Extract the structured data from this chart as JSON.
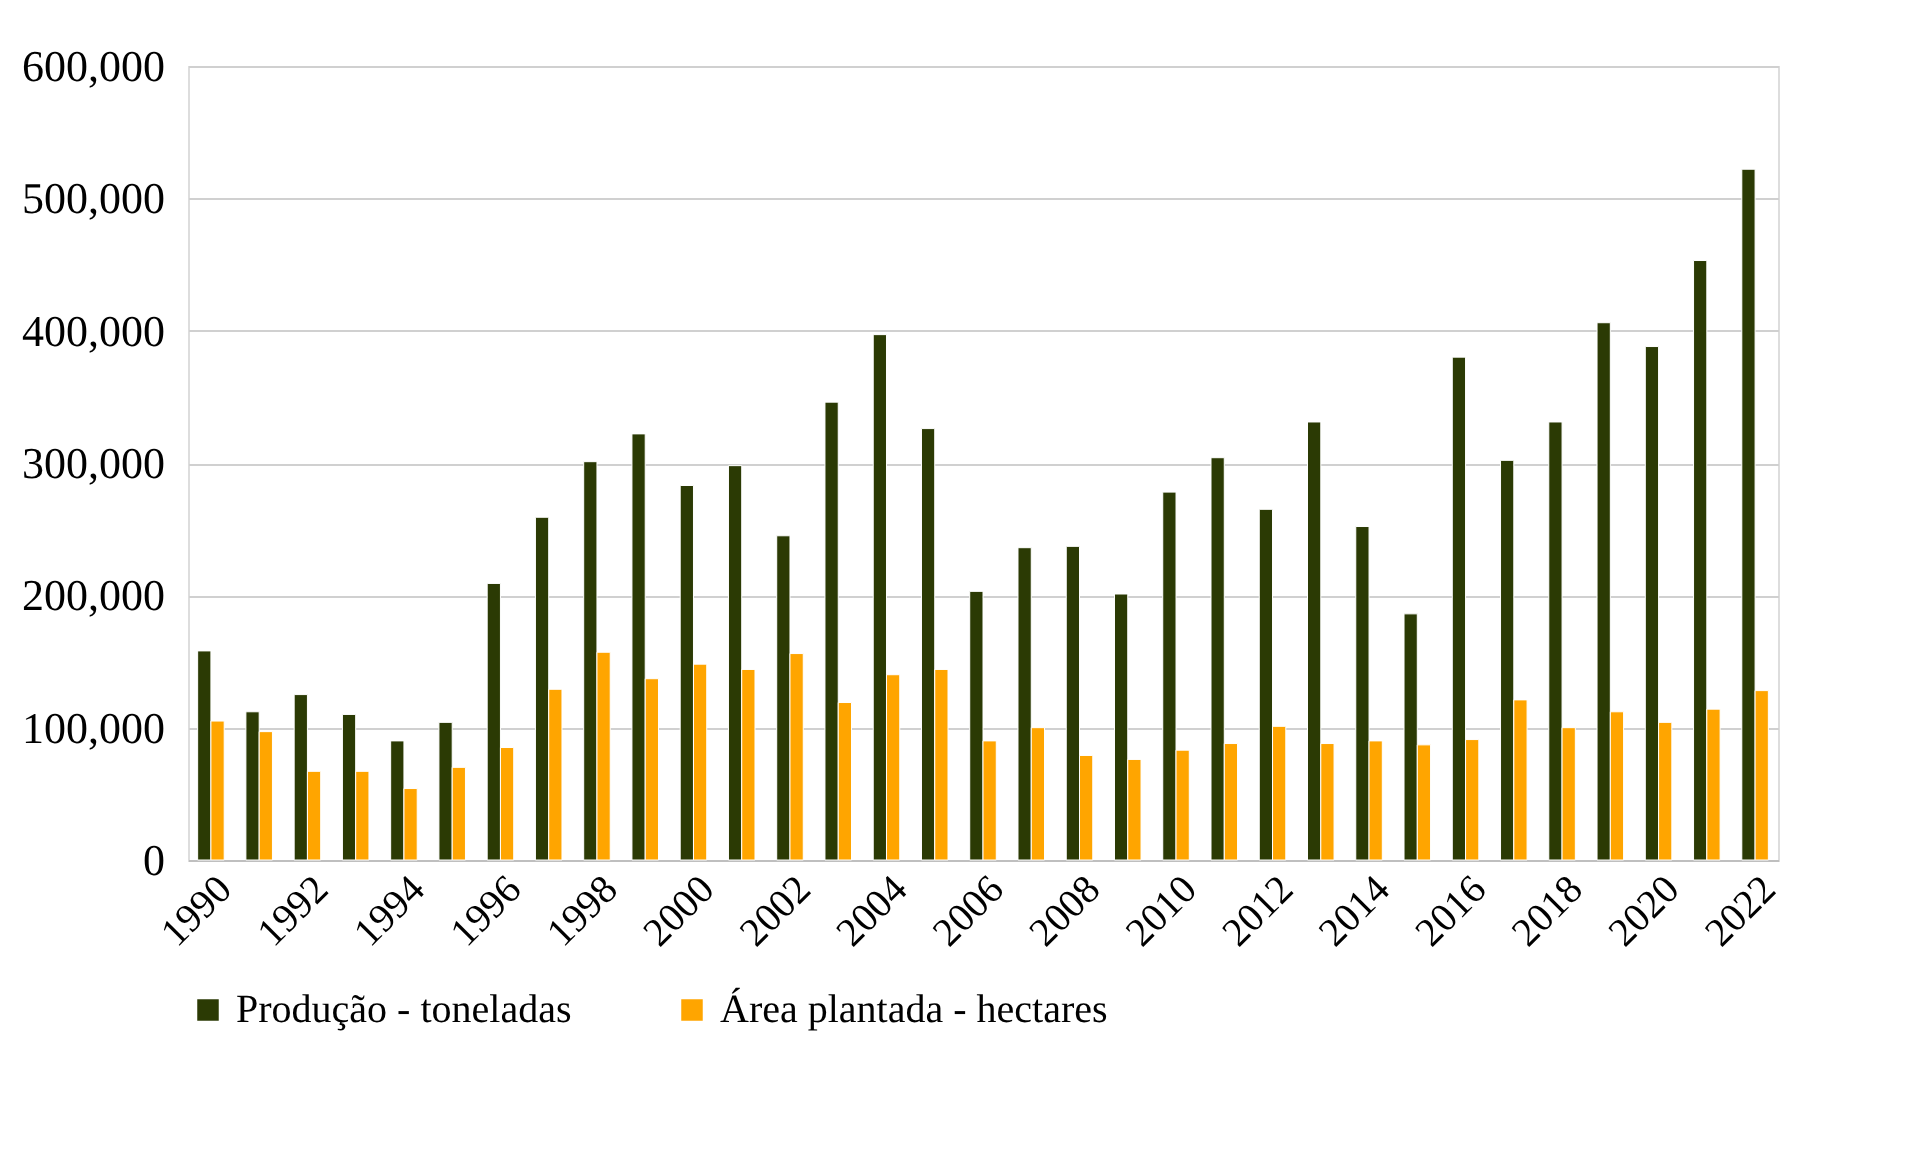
{
  "chart_data": {
    "type": "bar",
    "categories": [
      "1990",
      null,
      "1992",
      null,
      "1994",
      null,
      "1996",
      null,
      "1998",
      null,
      "2000",
      null,
      "2002",
      null,
      "2004",
      null,
      "2006",
      null,
      "2008",
      null,
      "2010",
      null,
      "2012",
      null,
      "2014",
      null,
      "2016",
      null,
      "2018",
      null,
      "2020",
      null,
      "2022"
    ],
    "series": [
      {
        "name": "Produção - toneladas",
        "color": "#2b3a04",
        "values": [
          158000,
          112000,
          125000,
          110000,
          90000,
          104000,
          209000,
          259000,
          301000,
          322000,
          283000,
          298000,
          245000,
          346000,
          397000,
          326000,
          203000,
          236000,
          237000,
          201000,
          278000,
          304000,
          265000,
          331000,
          252000,
          186000,
          380000,
          302000,
          331000,
          406000,
          388000,
          453000,
          522000
        ]
      },
      {
        "name": "Área plantada - hectares",
        "color": "#ffa500",
        "values": [
          105000,
          97000,
          67000,
          67000,
          54000,
          70000,
          85000,
          129000,
          157000,
          137000,
          148000,
          144000,
          156000,
          119000,
          140000,
          144000,
          90000,
          100000,
          79000,
          76000,
          83000,
          88000,
          101000,
          88000,
          90000,
          87000,
          91000,
          121000,
          100000,
          112000,
          104000,
          114000,
          128000
        ]
      }
    ],
    "ylim": [
      0,
      600000
    ],
    "yticks": [
      {
        "value": 0,
        "label": "0"
      },
      {
        "value": 100000,
        "label": "100,000"
      },
      {
        "value": 200000,
        "label": "200,000"
      },
      {
        "value": 300000,
        "label": "300,000"
      },
      {
        "value": 400000,
        "label": "400,000"
      },
      {
        "value": 500000,
        "label": "500,000"
      },
      {
        "value": 600000,
        "label": "600,000"
      }
    ],
    "grid": "y",
    "legend": "bottom"
  }
}
